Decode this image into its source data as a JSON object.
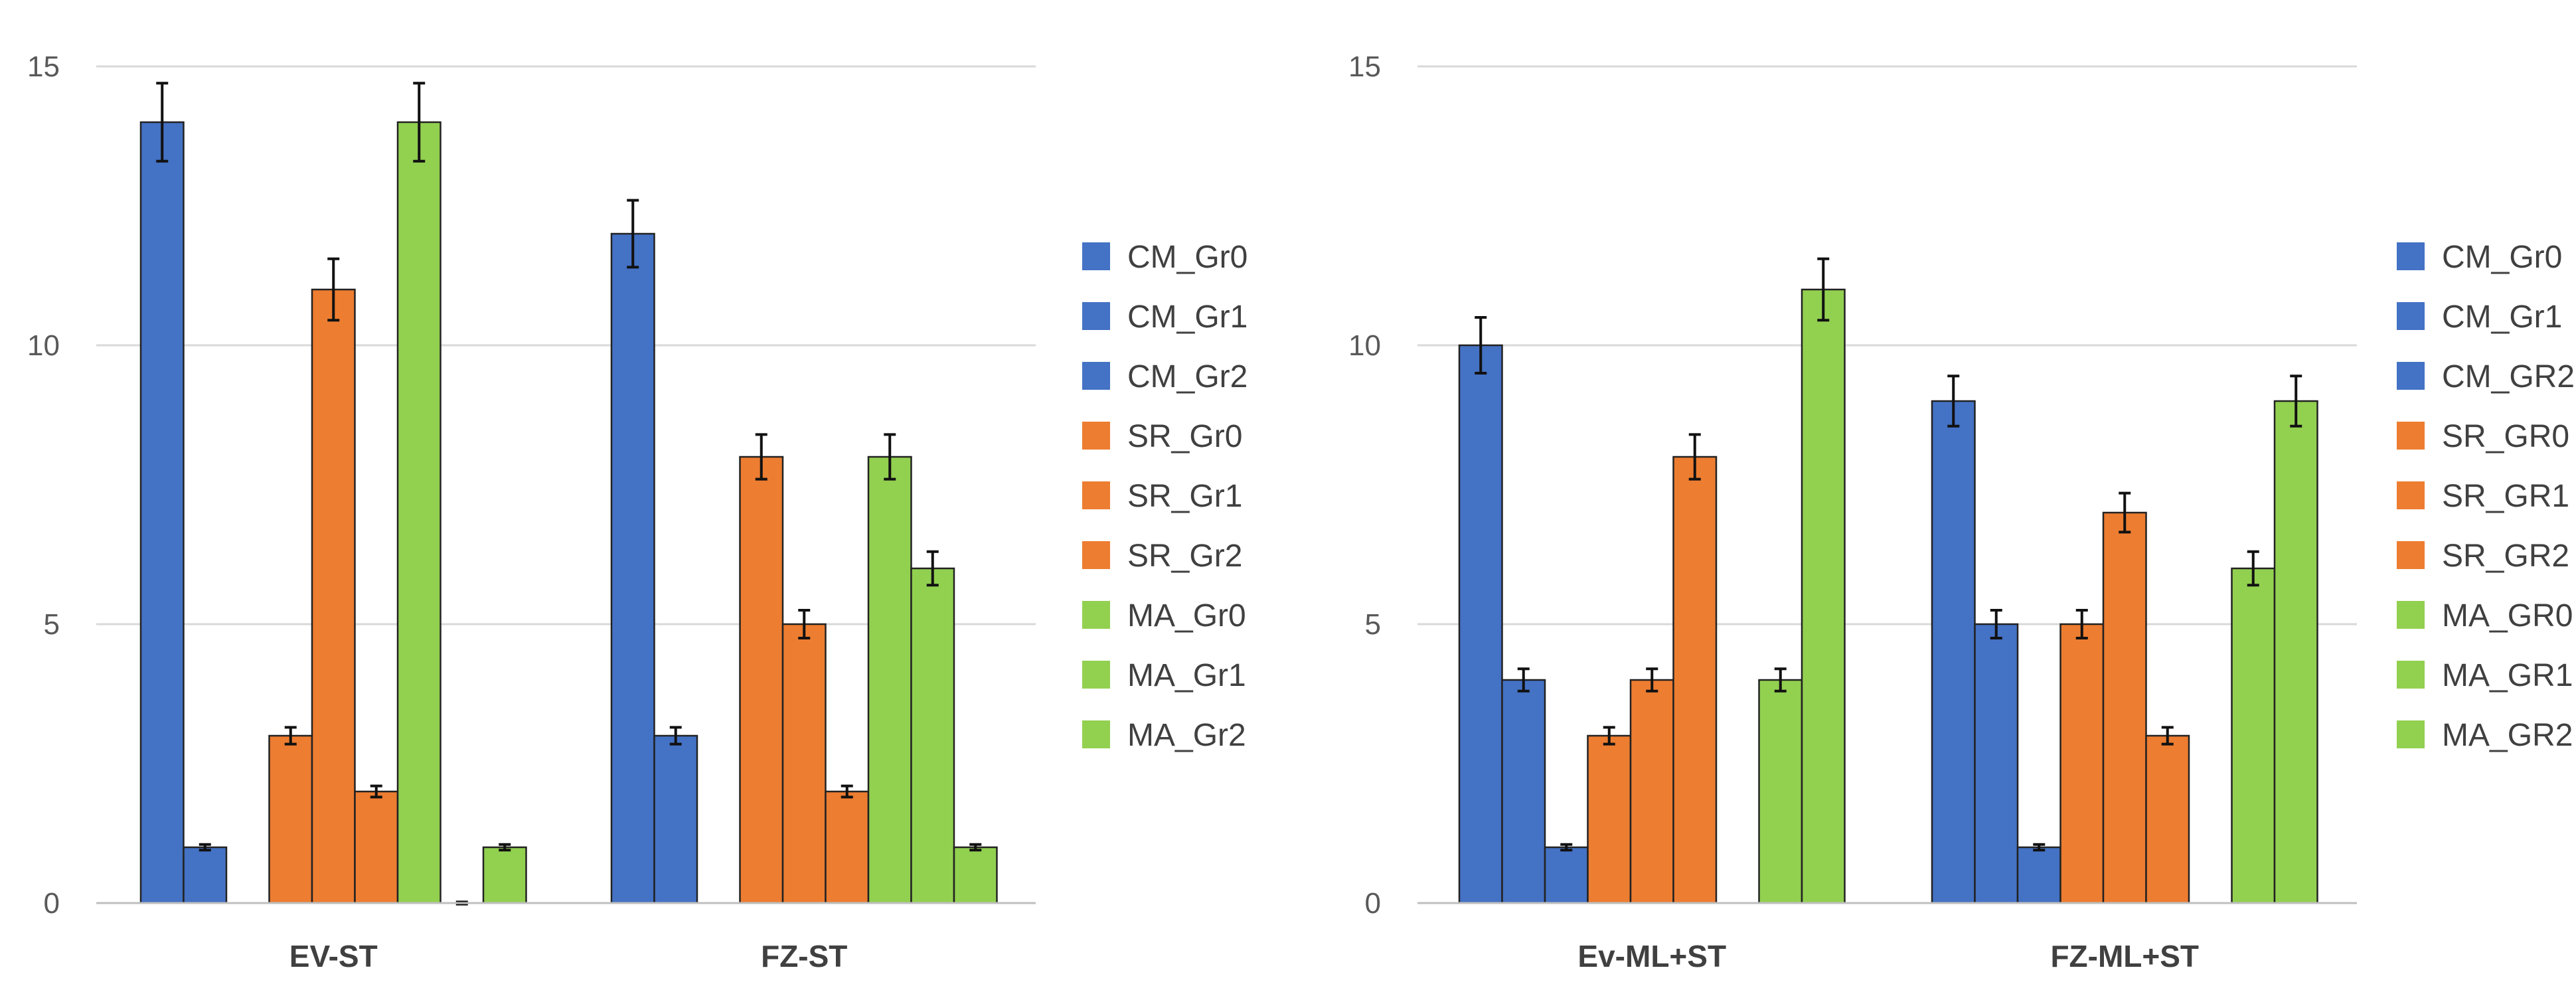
{
  "colors": {
    "cm": "#4472C4",
    "sr": "#ED7D31",
    "ma": "#92D050",
    "grid": "#d9d9d9",
    "outline": "#222222",
    "error_bar": "#111111"
  },
  "chart_data": [
    {
      "type": "bar",
      "title": "",
      "xlabel": "",
      "ylabel": "",
      "ylim": [
        0,
        15
      ],
      "yticks": [
        0,
        5,
        10,
        15
      ],
      "grid": true,
      "legend_position": "right",
      "categories": [
        "EV-ST",
        "FZ-ST"
      ],
      "series": [
        {
          "name": "CM_Gr0",
          "color": "cm",
          "values": [
            14,
            12
          ],
          "errors": [
            0.7,
            0.6
          ]
        },
        {
          "name": "CM_Gr1",
          "color": "cm",
          "values": [
            1,
            3
          ],
          "errors": [
            0.05,
            0.15
          ]
        },
        {
          "name": "CM_Gr2",
          "color": "cm",
          "values": [
            0,
            0
          ],
          "errors": [
            0,
            0
          ]
        },
        {
          "name": "SR_Gr0",
          "color": "sr",
          "values": [
            3,
            8
          ],
          "errors": [
            0.15,
            0.4
          ]
        },
        {
          "name": "SR_Gr1",
          "color": "sr",
          "values": [
            11,
            5
          ],
          "errors": [
            0.55,
            0.25
          ]
        },
        {
          "name": "SR_Gr2",
          "color": "sr",
          "values": [
            2,
            2
          ],
          "errors": [
            0.1,
            0.1
          ]
        },
        {
          "name": "MA_Gr0",
          "color": "ma",
          "values": [
            14,
            8
          ],
          "errors": [
            0.7,
            0.4
          ]
        },
        {
          "name": "MA_Gr1",
          "color": "ma",
          "values": [
            0,
            6
          ],
          "errors": [
            0.02,
            0.3
          ]
        },
        {
          "name": "MA_Gr2",
          "color": "ma",
          "values": [
            1,
            1
          ],
          "errors": [
            0.05,
            0.05
          ]
        }
      ]
    },
    {
      "type": "bar",
      "title": "",
      "xlabel": "",
      "ylabel": "",
      "ylim": [
        0,
        15
      ],
      "yticks": [
        0,
        5,
        10,
        15
      ],
      "grid": true,
      "legend_position": "right",
      "categories": [
        "Ev-ML+ST",
        "FZ-ML+ST"
      ],
      "series": [
        {
          "name": "CM_Gr0",
          "color": "cm",
          "values": [
            10,
            9
          ],
          "errors": [
            0.5,
            0.45
          ]
        },
        {
          "name": "CM_Gr1",
          "color": "cm",
          "values": [
            4,
            5
          ],
          "errors": [
            0.2,
            0.25
          ]
        },
        {
          "name": "CM_GR2",
          "color": "cm",
          "values": [
            1,
            1
          ],
          "errors": [
            0.05,
            0.05
          ]
        },
        {
          "name": "SR_GR0",
          "color": "sr",
          "values": [
            3,
            5
          ],
          "errors": [
            0.15,
            0.25
          ]
        },
        {
          "name": "SR_GR1",
          "color": "sr",
          "values": [
            4,
            7
          ],
          "errors": [
            0.2,
            0.35
          ]
        },
        {
          "name": "SR_GR2",
          "color": "sr",
          "values": [
            8,
            3
          ],
          "errors": [
            0.4,
            0.15
          ]
        },
        {
          "name": "MA_GR0",
          "color": "ma",
          "values": [
            0,
            0
          ],
          "errors": [
            0,
            0
          ]
        },
        {
          "name": "MA_GR1",
          "color": "ma",
          "values": [
            4,
            6
          ],
          "errors": [
            0.2,
            0.3
          ]
        },
        {
          "name": "MA_GR2",
          "color": "ma",
          "values": [
            11,
            9
          ],
          "errors": [
            0.55,
            0.45
          ]
        }
      ]
    }
  ]
}
